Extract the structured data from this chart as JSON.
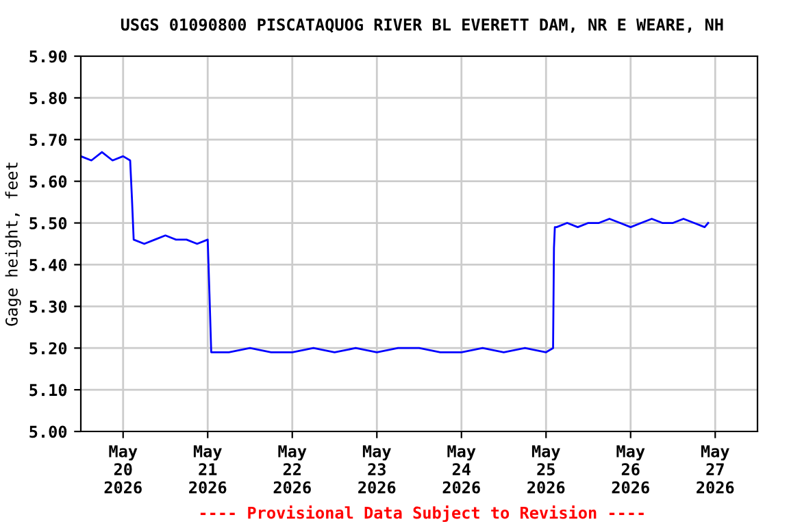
{
  "chart_data": {
    "type": "line",
    "title": "USGS 01090800 PISCATAQUOG RIVER BL EVERETT DAM, NR E WEARE, NH",
    "ylabel": "Gage height, feet",
    "annotations": [
      "---- Provisional Data Subject to Revision ----"
    ],
    "x": [
      "2026-05-19T12:00",
      "2026-05-19T15:00",
      "2026-05-19T18:00",
      "2026-05-19T21:00",
      "2026-05-20T00:00",
      "2026-05-20T02:00",
      "2026-05-20T02:30",
      "2026-05-20T03:00",
      "2026-05-20T06:00",
      "2026-05-20T09:00",
      "2026-05-20T12:00",
      "2026-05-20T15:00",
      "2026-05-20T18:00",
      "2026-05-20T21:00",
      "2026-05-21T00:00",
      "2026-05-21T00:30",
      "2026-05-21T01:00",
      "2026-05-21T06:00",
      "2026-05-21T12:00",
      "2026-05-21T18:00",
      "2026-05-22T00:00",
      "2026-05-22T06:00",
      "2026-05-22T12:00",
      "2026-05-22T18:00",
      "2026-05-23T00:00",
      "2026-05-23T06:00",
      "2026-05-23T12:00",
      "2026-05-23T18:00",
      "2026-05-24T00:00",
      "2026-05-24T06:00",
      "2026-05-24T12:00",
      "2026-05-24T18:00",
      "2026-05-25T00:00",
      "2026-05-25T02:00",
      "2026-05-25T02:15",
      "2026-05-25T02:30",
      "2026-05-25T03:00",
      "2026-05-25T06:00",
      "2026-05-25T09:00",
      "2026-05-25T12:00",
      "2026-05-25T15:00",
      "2026-05-25T18:00",
      "2026-05-25T21:00",
      "2026-05-26T00:00",
      "2026-05-26T03:00",
      "2026-05-26T06:00",
      "2026-05-26T09:00",
      "2026-05-26T12:00",
      "2026-05-26T15:00",
      "2026-05-26T18:00",
      "2026-05-26T21:00",
      "2026-05-26T22:00"
    ],
    "series": [
      {
        "color": "#0000ff",
        "values": [
          5.66,
          5.65,
          5.67,
          5.65,
          5.66,
          5.65,
          5.56,
          5.46,
          5.45,
          5.46,
          5.47,
          5.46,
          5.46,
          5.45,
          5.46,
          5.33,
          5.19,
          5.19,
          5.2,
          5.19,
          5.19,
          5.2,
          5.19,
          5.2,
          5.19,
          5.2,
          5.2,
          5.19,
          5.19,
          5.2,
          5.19,
          5.2,
          5.19,
          5.2,
          5.44,
          5.49,
          5.49,
          5.5,
          5.49,
          5.5,
          5.5,
          5.51,
          5.5,
          5.49,
          5.5,
          5.51,
          5.5,
          5.5,
          5.51,
          5.5,
          5.49,
          5.5
        ]
      }
    ],
    "xlim": [
      "2026-05-19T12:00",
      "2026-05-27T12:00"
    ],
    "xticks": [
      {
        "value": "2026-05-20",
        "label": "May\n20\n2026"
      },
      {
        "value": "2026-05-21",
        "label": "May\n21\n2026"
      },
      {
        "value": "2026-05-22",
        "label": "May\n22\n2026"
      },
      {
        "value": "2026-05-23",
        "label": "May\n23\n2026"
      },
      {
        "value": "2026-05-24",
        "label": "May\n24\n2026"
      },
      {
        "value": "2026-05-25",
        "label": "May\n25\n2026"
      },
      {
        "value": "2026-05-26",
        "label": "May\n26\n2026"
      },
      {
        "value": "2026-05-27",
        "label": "May\n27\n2026"
      }
    ],
    "ylim": [
      5.0,
      5.9
    ],
    "yticks": [
      {
        "value": 5.0,
        "label": "5.00"
      },
      {
        "value": 5.1,
        "label": "5.10"
      },
      {
        "value": 5.2,
        "label": "5.20"
      },
      {
        "value": 5.3,
        "label": "5.30"
      },
      {
        "value": 5.4,
        "label": "5.40"
      },
      {
        "value": 5.5,
        "label": "5.50"
      },
      {
        "value": 5.6,
        "label": "5.60"
      },
      {
        "value": 5.7,
        "label": "5.70"
      },
      {
        "value": 5.8,
        "label": "5.80"
      },
      {
        "value": 5.9,
        "label": "5.90"
      }
    ],
    "grid": true,
    "legend": false,
    "marker": "none",
    "line_style": "solid"
  }
}
